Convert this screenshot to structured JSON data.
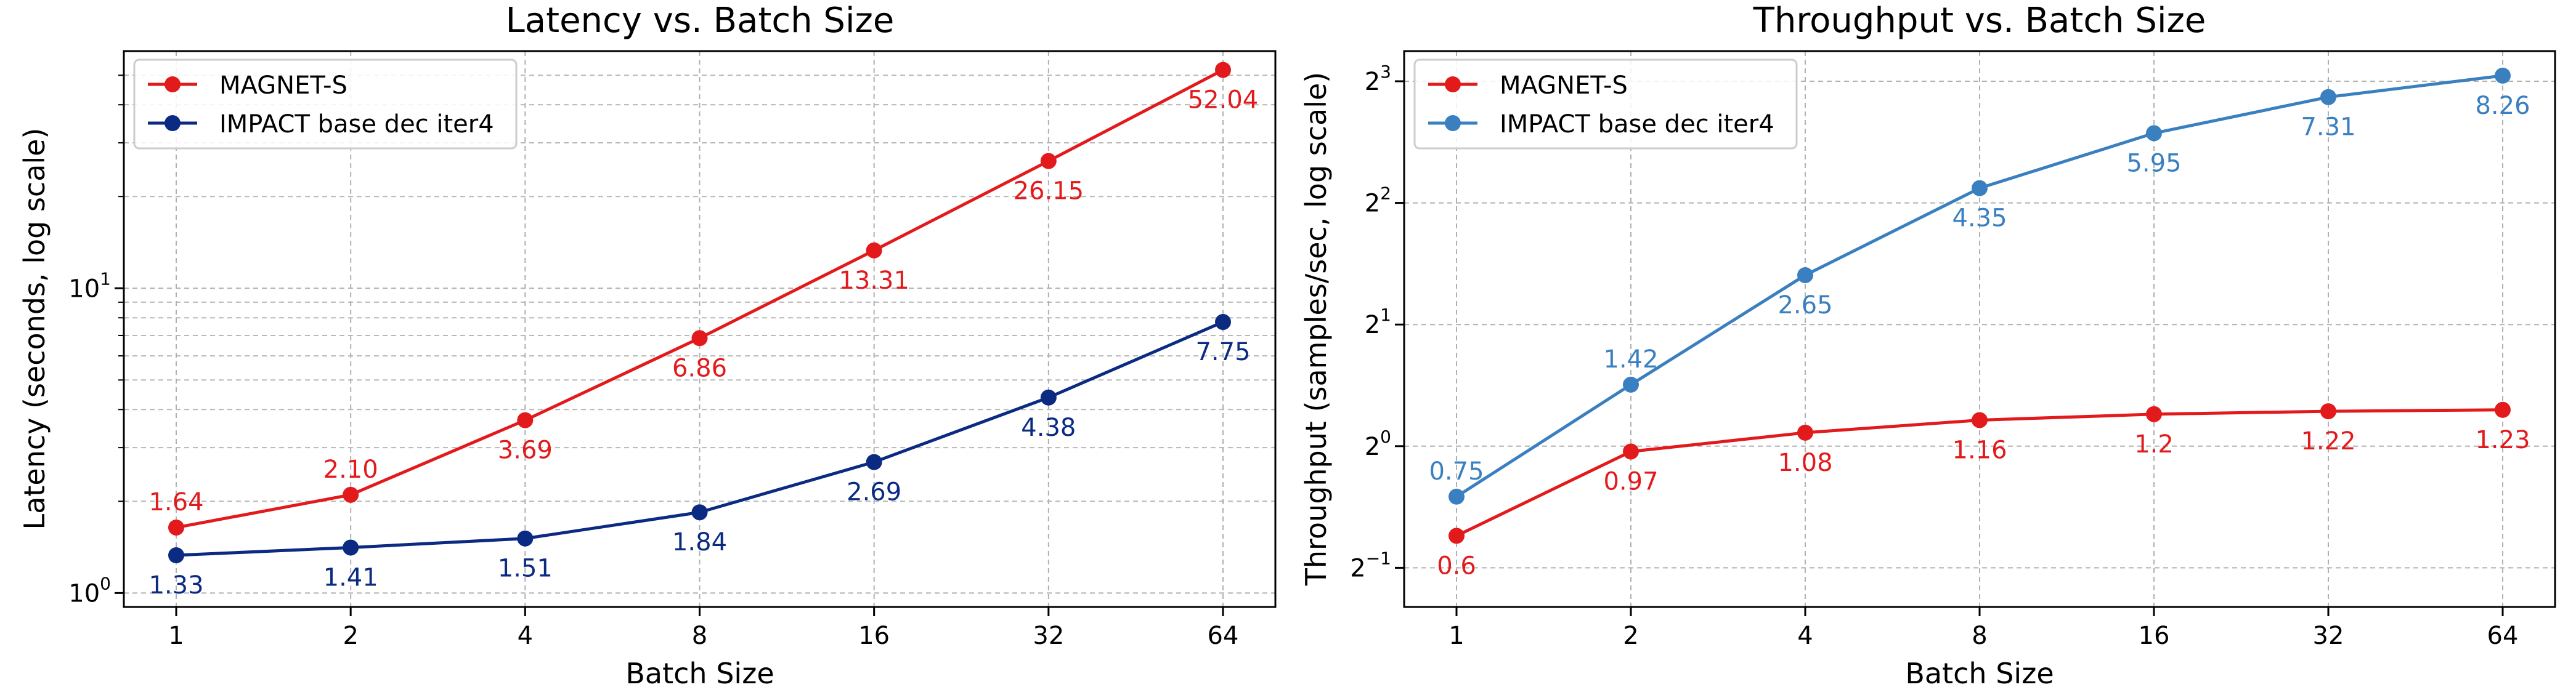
{
  "chart_data": [
    {
      "type": "line",
      "title": "Latency vs. Batch Size",
      "xlabel": "Batch Size",
      "ylabel": "Latency (seconds, log scale)",
      "yscale": "log10",
      "categories": [
        "1",
        "2",
        "4",
        "8",
        "16",
        "32",
        "64"
      ],
      "x": [
        1,
        2,
        4,
        8,
        16,
        32,
        64
      ],
      "ylim": [
        0.9,
        60
      ],
      "yticks": [
        {
          "value": 1,
          "base": "10",
          "exp": "0"
        },
        {
          "value": 10,
          "base": "10",
          "exp": "1"
        }
      ],
      "grid": true,
      "legend_position": "top-left",
      "series": [
        {
          "name": "MAGNET-S",
          "color": "#e31a1c",
          "values": [
            1.64,
            2.1,
            3.69,
            6.86,
            13.31,
            26.15,
            52.04
          ],
          "labels": [
            "1.64",
            "2.10",
            "3.69",
            "6.86",
            "13.31",
            "26.15",
            "52.04"
          ]
        },
        {
          "name": "IMPACT base dec iter4",
          "color": "#0b2a82",
          "values": [
            1.33,
            1.41,
            1.51,
            1.84,
            2.69,
            4.38,
            7.75
          ],
          "labels": [
            "1.33",
            "1.41",
            "1.51",
            "1.84",
            "2.69",
            "4.38",
            "7.75"
          ]
        }
      ]
    },
    {
      "type": "line",
      "title": "Throughput vs. Batch Size",
      "xlabel": "Batch Size",
      "ylabel": "Throughput (samples/sec, log scale)",
      "yscale": "log2",
      "categories": [
        "1",
        "2",
        "4",
        "8",
        "16",
        "32",
        "64"
      ],
      "x": [
        1,
        2,
        4,
        8,
        16,
        32,
        64
      ],
      "ylim": [
        0.4,
        9.5
      ],
      "yticks": [
        {
          "value": 0.5,
          "base": "2",
          "exp": "−1"
        },
        {
          "value": 1,
          "base": "2",
          "exp": "0"
        },
        {
          "value": 2,
          "base": "2",
          "exp": "1"
        },
        {
          "value": 4,
          "base": "2",
          "exp": "2"
        },
        {
          "value": 8,
          "base": "2",
          "exp": "3"
        }
      ],
      "grid": true,
      "legend_position": "top-left",
      "series": [
        {
          "name": "MAGNET-S",
          "color": "#e31a1c",
          "values": [
            0.6,
            0.97,
            1.08,
            1.16,
            1.2,
            1.22,
            1.23
          ],
          "labels": [
            "0.6",
            "0.97",
            "1.08",
            "1.16",
            "1.2",
            "1.22",
            "1.23"
          ]
        },
        {
          "name": "IMPACT base dec iter4",
          "color": "#3a7fbf",
          "values": [
            0.75,
            1.42,
            2.65,
            4.35,
            5.95,
            7.31,
            8.26
          ],
          "labels": [
            "0.75",
            "1.42",
            "2.65",
            "4.35",
            "5.95",
            "7.31",
            "8.26"
          ]
        }
      ]
    }
  ]
}
